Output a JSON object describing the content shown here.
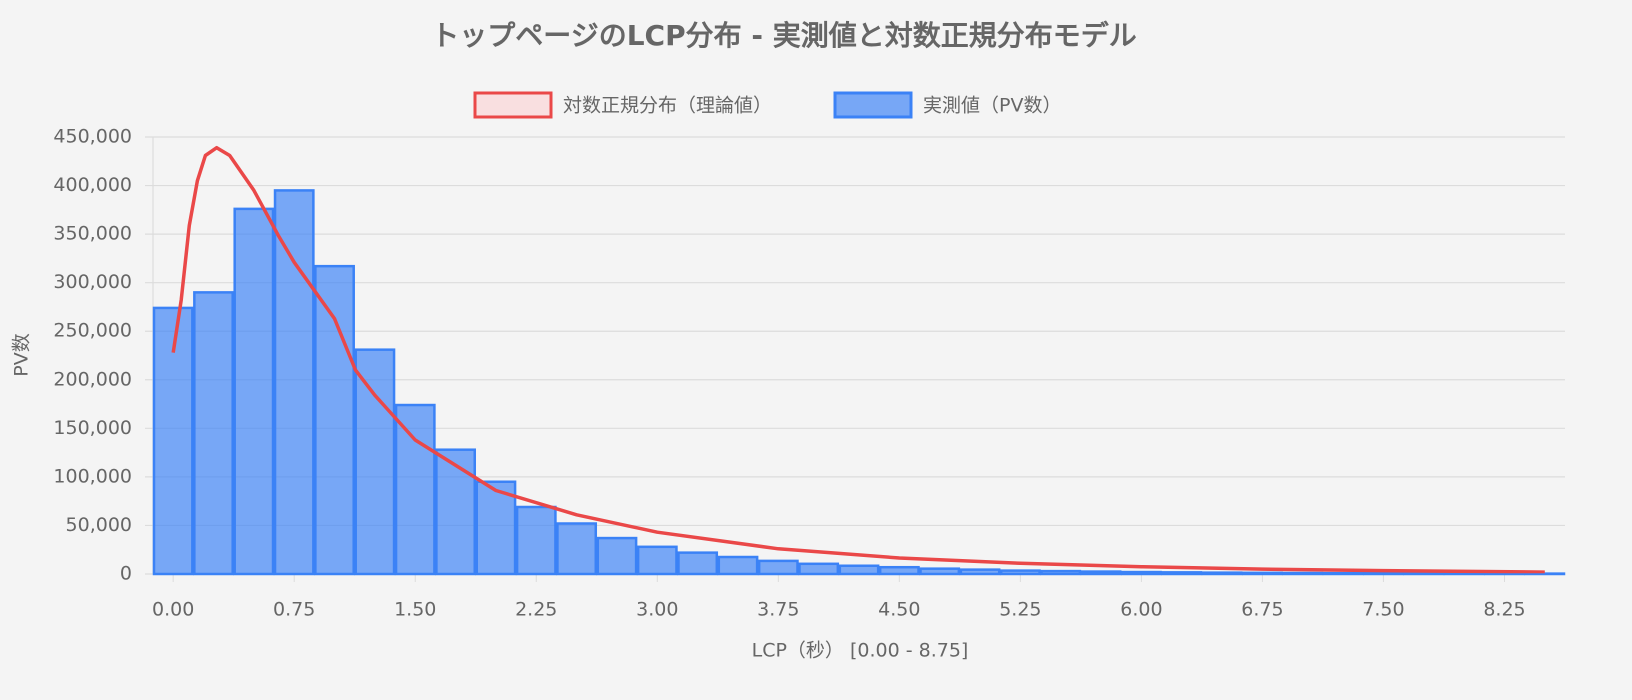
{
  "chart_data": {
    "type": "bar",
    "title": "トップページのLCP分布 - 実測値と対数正規分布モデル",
    "x_label": "LCP（秒） [0.00 - 8.75]",
    "y_label": "PV数",
    "categories": [
      "0.00",
      null,
      null,
      "0.75",
      null,
      null,
      "1.50",
      null,
      null,
      "2.25",
      null,
      null,
      "3.00",
      null,
      null,
      "3.75",
      null,
      null,
      "4.50",
      null,
      null,
      "5.25",
      null,
      null,
      "6.00",
      null,
      null,
      "6.75",
      null,
      null,
      "7.50",
      null,
      null,
      "8.25",
      null
    ],
    "series": [
      {
        "name": "対数正規分布（理論値）",
        "type": "line",
        "color": "#ea4848",
        "fill": "#f9dfe0",
        "x": [
          0.0,
          0.05,
          0.1,
          0.15,
          0.2,
          0.27,
          0.35,
          0.5,
          0.65,
          0.75,
          1.0,
          1.13,
          1.25,
          1.5,
          2.0,
          2.5,
          3.0,
          3.75,
          4.5,
          5.25,
          6.0,
          6.75,
          7.5,
          8.5
        ],
        "values": [
          228000,
          282000,
          359000,
          405000,
          431000,
          439000,
          431000,
          395000,
          349000,
          321000,
          263000,
          210000,
          184000,
          138000,
          86000,
          61000,
          43000,
          26000,
          16500,
          11000,
          7500,
          5000,
          3500,
          2000
        ]
      },
      {
        "name": "実測値（PV数）",
        "type": "bar",
        "color": "#3b82f6",
        "fill": "rgba(59,130,246,0.68)",
        "values": [
          274000,
          290000,
          376000,
          395000,
          317000,
          231000,
          174000,
          128000,
          95000,
          69000,
          52000,
          37000,
          28000,
          22000,
          17500,
          13500,
          10500,
          8500,
          7000,
          5500,
          4500,
          3500,
          3000,
          2500,
          2000,
          1700,
          1400,
          1200,
          1000,
          900,
          800,
          700,
          600,
          500,
          400
        ]
      }
    ],
    "ylim": [
      0,
      450000
    ],
    "yticks": [
      {
        "value": 0,
        "label": "0"
      },
      {
        "value": 50000,
        "label": "50,000"
      },
      {
        "value": 100000,
        "label": "100,000"
      },
      {
        "value": 150000,
        "label": "150,000"
      },
      {
        "value": 200000,
        "label": "200,000"
      },
      {
        "value": 250000,
        "label": "250,000"
      },
      {
        "value": 300000,
        "label": "300,000"
      },
      {
        "value": 350000,
        "label": "350,000"
      },
      {
        "value": 400000,
        "label": "400,000"
      },
      {
        "value": 450000,
        "label": "450,000"
      }
    ],
    "grid": true,
    "legend": "top"
  }
}
